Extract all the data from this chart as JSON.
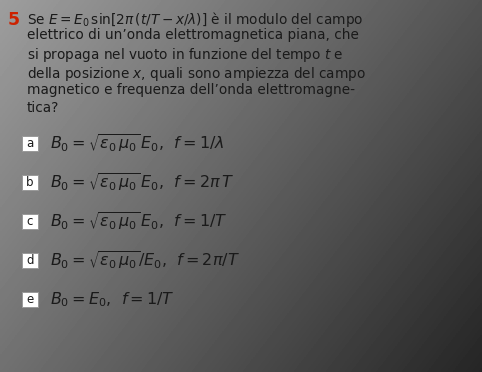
{
  "background_color": "#cbcbcb",
  "question_number_color": "#cc2200",
  "question_text_color": "#1a1a1a",
  "question_lines": [
    "Se $E = E_0\\,\\sin[2\\pi\\,(t/T - x/\\lambda)]$ è il modulo del campo",
    "elettrico di un’onda elettromagnetica piana, che",
    "si propaga nel vuoto in funzione del tempo $t$ e",
    "della posizione $x$, quali sono ampiezza del campo",
    "magnetico e frequenza dell’onda elettromagne-",
    "tica?"
  ],
  "options": [
    {
      "label": "a",
      "formula": "$B_0 = \\sqrt{\\varepsilon_0\\,\\mu_0}\\,E_0$,  $f = 1/\\lambda$"
    },
    {
      "label": "b",
      "formula": "$B_0 = \\sqrt{\\varepsilon_0\\,\\mu_0}\\,E_0$,  $f = 2\\pi\\,T$"
    },
    {
      "label": "c",
      "formula": "$B_0 = \\sqrt{\\varepsilon_0\\,\\mu_0}\\,E_0$,  $f = 1/T$"
    },
    {
      "label": "d",
      "formula": "$B_0 = \\sqrt{\\varepsilon_0\\,\\mu_0}/E_0$,  $f = 2\\pi/T$"
    },
    {
      "label": "e",
      "formula": "$B_0 = E_0$,  $f = 1/T$"
    }
  ],
  "box_color": "#ffffff",
  "box_border_color": "#999999",
  "text_font_size": 9.8,
  "option_font_size": 11.5,
  "label_font_size": 8.5
}
